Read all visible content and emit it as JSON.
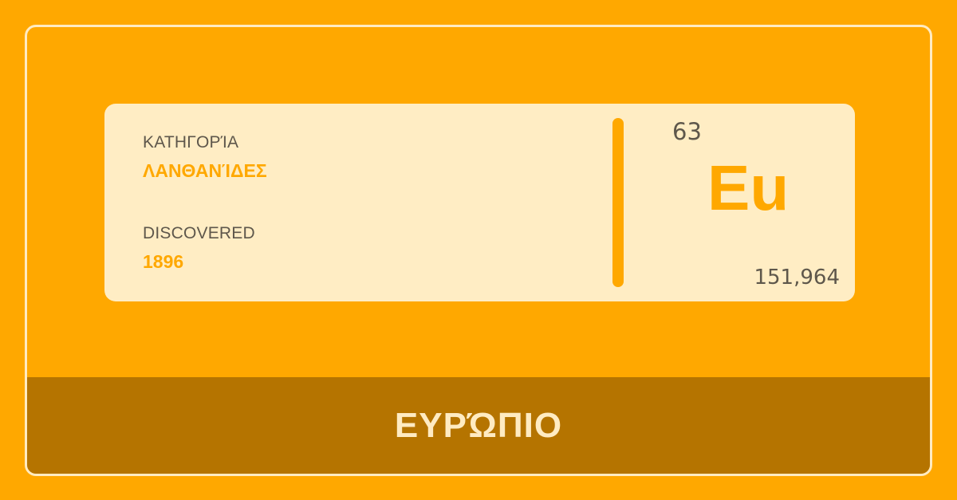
{
  "colors": {
    "background": "#FFA800",
    "card": "#FFEDC4",
    "accent": "#FFA800",
    "footer": "#B57400",
    "text_dark": "#5E574B",
    "text_light": "#FFEBC2"
  },
  "info": {
    "category_label": "ΚΑΤΗΓΟΡΊΑ",
    "category_value": "ΛΑΝΘΑΝΊΔΕΣ",
    "discovered_label": "DISCOVERED",
    "discovered_value": "1896"
  },
  "element": {
    "atomic_number": "63",
    "symbol": "Eu",
    "atomic_mass": "151,964",
    "name": "ΕΥΡΏΠΙΟ"
  }
}
